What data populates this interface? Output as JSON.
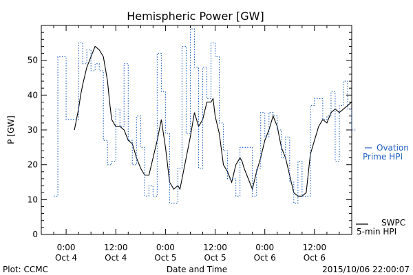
{
  "chart_data": {
    "type": "line",
    "title": "Hemispheric Power [GW]",
    "xlabel": "Date and Time",
    "ylabel": "P [GW]",
    "ylim": [
      0,
      60
    ],
    "xlim": [
      -6,
      69
    ],
    "yticks": [
      0,
      10,
      20,
      30,
      40,
      50
    ],
    "xticks": [
      {
        "x": 0,
        "time": "0:00",
        "date": "Oct 4"
      },
      {
        "x": 12,
        "time": "12:00",
        "date": "Oct 4"
      },
      {
        "x": 24,
        "time": "0:00",
        "date": "Oct 5"
      },
      {
        "x": 36,
        "time": "12:00",
        "date": "Oct 5"
      },
      {
        "x": 48,
        "time": "0:00",
        "date": "Oct 6"
      },
      {
        "x": 60,
        "time": "12:00",
        "date": "Oct 6"
      }
    ],
    "x_unit": "hours from Oct 4 0:00 UT",
    "grid": false,
    "series": [
      {
        "name": "SWPC 5-min HPI",
        "color": "#000000",
        "style": "solid",
        "x": [
          2,
          3,
          3.5,
          4,
          5,
          6,
          7,
          8,
          9,
          10,
          10.5,
          11,
          12,
          12.5,
          13,
          14,
          15,
          16,
          17,
          18,
          19,
          20,
          21,
          22,
          23,
          24,
          25,
          26,
          27,
          27.5,
          28,
          29,
          30,
          31,
          32,
          33,
          34,
          35,
          35.5,
          36,
          37,
          38,
          39,
          40,
          41,
          42,
          42.5,
          43,
          44,
          45,
          46,
          47,
          48,
          49,
          50,
          51,
          52,
          53,
          54,
          55,
          56,
          57,
          58,
          59,
          60,
          61,
          62,
          63,
          64,
          65,
          66,
          67,
          68,
          69
        ],
        "values": [
          30,
          36,
          40,
          43,
          48,
          51,
          54,
          53,
          51,
          44,
          38,
          33,
          31,
          31,
          31,
          30,
          27,
          26,
          22,
          19,
          17,
          17,
          22,
          27,
          33,
          25,
          15,
          13,
          14,
          13,
          16,
          22,
          28,
          35,
          31,
          33,
          38,
          38,
          39,
          34,
          29,
          20,
          18,
          15,
          20,
          22,
          21,
          19,
          16,
          13,
          18,
          22,
          27,
          30,
          34,
          31,
          25,
          22,
          17,
          12,
          11,
          11,
          12,
          23,
          27,
          31,
          33,
          32,
          35,
          36,
          35,
          36,
          37,
          38
        ]
      },
      {
        "name": "Ovation Prime HPI",
        "color": "#1f5fbf",
        "style": "dotted",
        "x": [
          -3,
          -2,
          -1,
          0,
          1,
          2,
          3,
          4,
          5,
          6,
          7,
          8,
          9,
          10,
          11,
          12,
          13,
          14,
          15,
          16,
          17,
          18,
          19,
          20,
          21,
          22,
          23,
          24,
          25,
          26,
          27,
          28,
          29,
          30,
          31,
          32,
          33,
          34,
          35,
          36,
          37,
          38,
          39,
          40,
          41,
          42,
          43,
          44,
          45,
          46,
          47,
          48,
          49,
          50,
          51,
          52,
          53,
          54,
          55,
          56,
          57,
          58,
          59,
          60,
          61,
          62,
          63,
          64,
          65,
          66,
          67,
          68,
          69
        ],
        "values": [
          11,
          51,
          51,
          33,
          33,
          33,
          55,
          49,
          53,
          47,
          49,
          47,
          27,
          20,
          21,
          36,
          31,
          49,
          27,
          20,
          34,
          25,
          11,
          14,
          11,
          52,
          41,
          29,
          9,
          9,
          19,
          54,
          29,
          59,
          48,
          19,
          48,
          39,
          55,
          51,
          32,
          24,
          16,
          16,
          11,
          25,
          25,
          25,
          11,
          19,
          35,
          28,
          35,
          34,
          30,
          22,
          28,
          15,
          9,
          21,
          11,
          11,
          37,
          39,
          39,
          33,
          34,
          41,
          21,
          37,
          44,
          36,
          30
        ]
      }
    ],
    "legend": [
      {
        "line1": "Ovation",
        "line2": "Prime HPI",
        "placement": "right-middle"
      },
      {
        "line1": "SWPC",
        "line2": "5-min HPI",
        "placement": "right-bottom"
      }
    ]
  },
  "footer": {
    "left": "Plot: CCMC",
    "right": "2015/10/06 22:00:07"
  }
}
